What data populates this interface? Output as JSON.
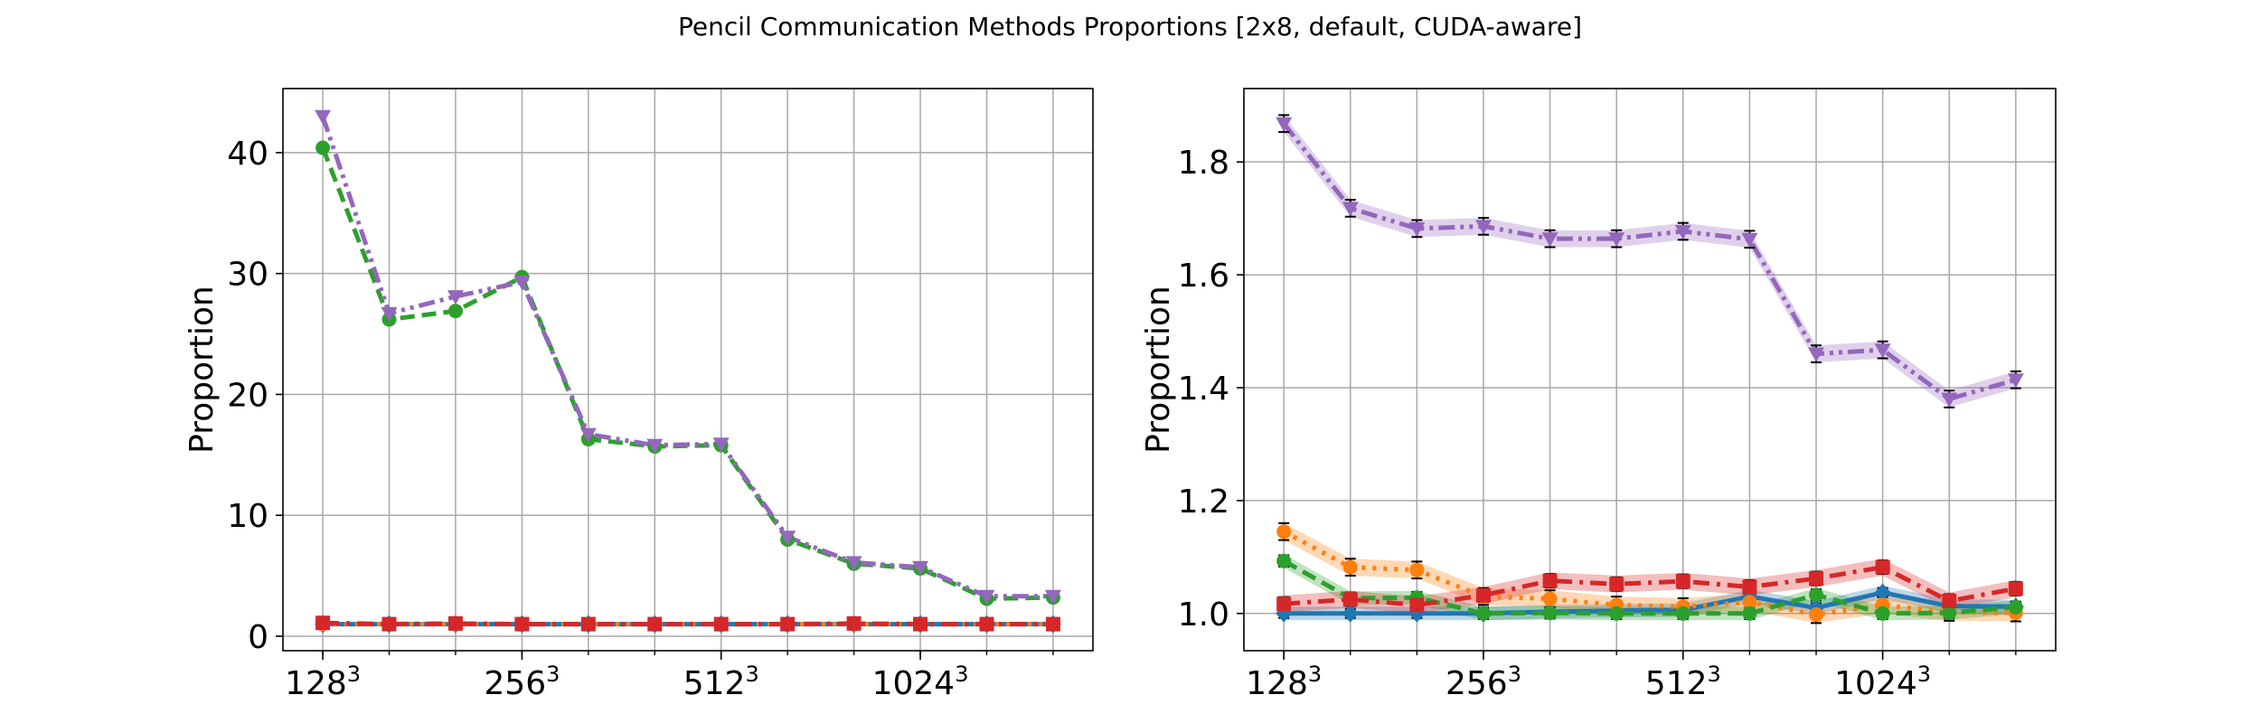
{
  "chart_data": {
    "suptitle": "Pencil Communication Methods Proportions [2x8, default, CUDA-aware]",
    "colors": {
      "blue": "#1f77b4",
      "orange": "#ff7f0e",
      "green": "#2ca02c",
      "red": "#d62728",
      "purple": "#9467bd"
    },
    "x_ticks": [
      {
        "base": "128",
        "sup": "3",
        "x": 0
      },
      {
        "base": "256",
        "sup": "3",
        "x": 3
      },
      {
        "base": "512",
        "sup": "3",
        "x": 6
      },
      {
        "base": "1024",
        "sup": "3",
        "x": 9
      }
    ],
    "x": [
      0,
      1,
      2,
      3,
      4,
      5,
      6,
      7,
      8,
      9,
      10,
      11
    ],
    "panels": [
      {
        "type": "line",
        "ylabel": "Proportion",
        "ylim": [
          -1.2,
          45.3
        ],
        "yticks": [
          0,
          10,
          20,
          30,
          40
        ],
        "grid": true,
        "series": [
          {
            "color": "blue",
            "dash": "solid",
            "marker": "diamond",
            "values": [
              1,
              1,
              1,
              1,
              1,
              1,
              1,
              1,
              1,
              1,
              1,
              1
            ]
          },
          {
            "color": "orange",
            "dash": "dot",
            "marker": "circle",
            "values": [
              1,
              1,
              1,
              1,
              1,
              1,
              1,
              1,
              1,
              1,
              1,
              1
            ]
          },
          {
            "color": "green",
            "dash": "dash",
            "marker": "circle",
            "values": [
              40.4,
              26.2,
              26.9,
              29.7,
              16.3,
              15.7,
              15.8,
              8.0,
              6.0,
              5.6,
              3.1,
              3.2
            ]
          },
          {
            "color": "red",
            "dash": "dashdot",
            "marker": "square",
            "values": [
              1.1,
              1.0,
              1.05,
              1.0,
              1.0,
              1.0,
              1.0,
              1.0,
              1.05,
              1.0,
              1.0,
              1.0
            ]
          },
          {
            "color": "purple",
            "dash": "dashdotdot",
            "marker": "triangle-down",
            "values": [
              43.0,
              26.7,
              28.1,
              29.3,
              16.7,
              15.8,
              15.9,
              8.2,
              6.1,
              5.7,
              3.3,
              3.3
            ]
          }
        ]
      },
      {
        "type": "line",
        "ylabel": "Proportion",
        "ylim": [
          0.934,
          1.93
        ],
        "yticks": [
          1.0,
          1.2,
          1.4,
          1.6,
          1.8
        ],
        "ytick_labels": [
          "1.0",
          "1.2",
          "1.4",
          "1.6",
          "1.8"
        ],
        "grid": true,
        "series": [
          {
            "color": "blue",
            "dash": "solid",
            "marker": "diamond",
            "values": [
              1.0,
              1.0,
              1.0,
              1.0,
              1.003,
              1.005,
              1.006,
              1.03,
              1.01,
              1.037,
              1.013,
              1.012
            ],
            "band": 0.012,
            "err": 0.008
          },
          {
            "color": "orange",
            "dash": "dot",
            "marker": "circle",
            "values": [
              1.145,
              1.082,
              1.077,
              1.03,
              1.026,
              1.015,
              1.012,
              1.02,
              0.998,
              1.015,
              1.002,
              1.001
            ],
            "band": 0.015,
            "err": 0.015
          },
          {
            "color": "green",
            "dash": "dash",
            "marker": "circle",
            "values": [
              1.093,
              1.027,
              1.028,
              1.0,
              1.001,
              1.0,
              1.0,
              1.0,
              1.033,
              1.0,
              1.001,
              1.011
            ],
            "band": 0.012,
            "err": 0.01
          },
          {
            "color": "red",
            "dash": "dashdot",
            "marker": "square",
            "values": [
              1.017,
              1.025,
              1.015,
              1.032,
              1.058,
              1.052,
              1.057,
              1.047,
              1.062,
              1.082,
              1.022,
              1.044
            ],
            "band": 0.015,
            "err": 0.012
          },
          {
            "color": "purple",
            "dash": "dashdotdot",
            "marker": "triangle-down",
            "values": [
              1.868,
              1.718,
              1.682,
              1.686,
              1.664,
              1.664,
              1.677,
              1.663,
              1.46,
              1.467,
              1.38,
              1.414
            ],
            "band": 0.015,
            "err": 0.015
          }
        ]
      }
    ]
  }
}
